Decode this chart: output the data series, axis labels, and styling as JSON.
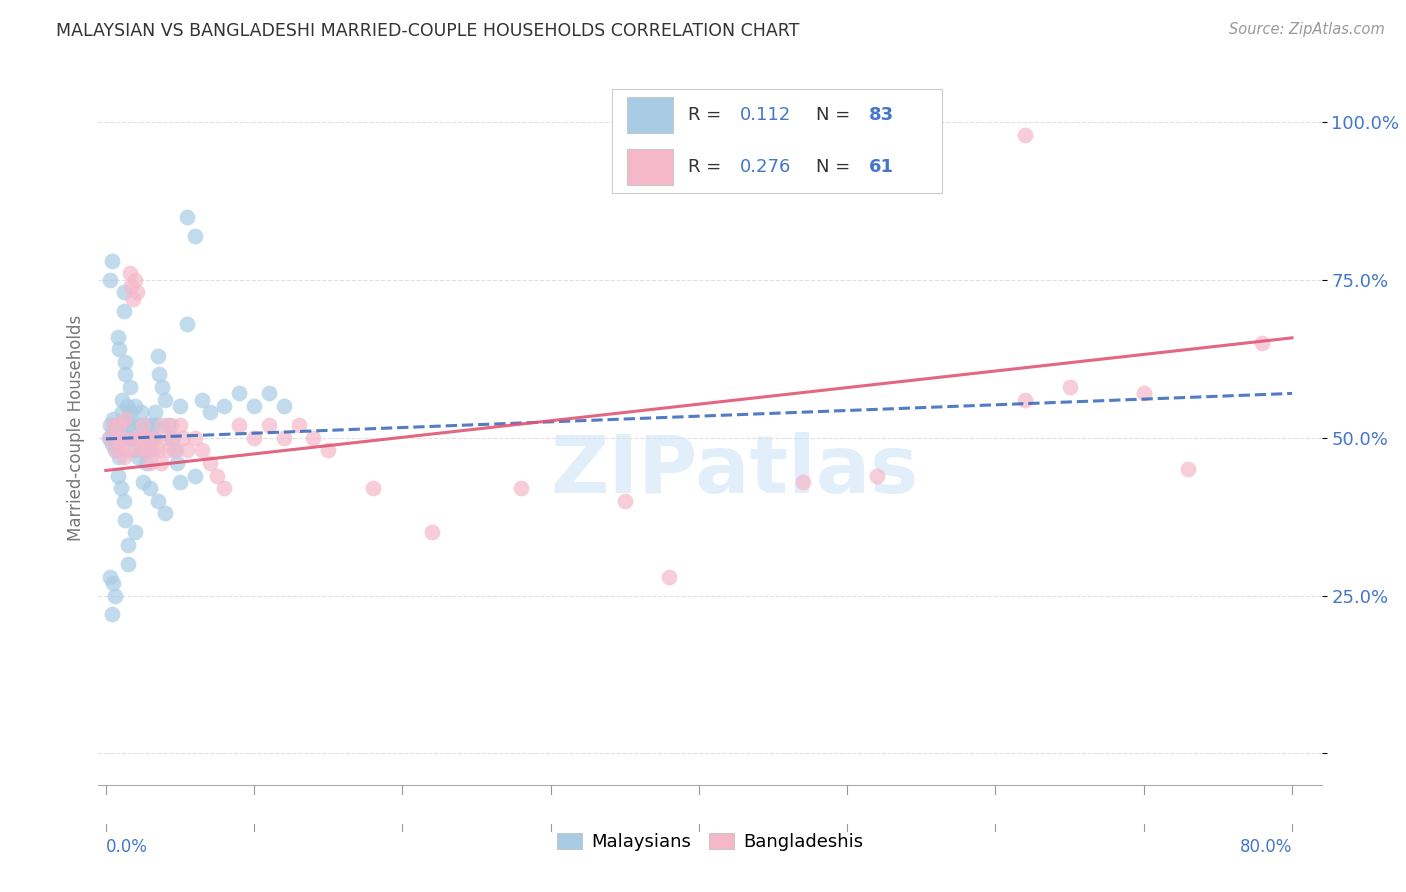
{
  "title": "MALAYSIAN VS BANGLADESHI MARRIED-COUPLE HOUSEHOLDS CORRELATION CHART",
  "source": "Source: ZipAtlas.com",
  "ylabel": "Married-couple Households",
  "y_ticks": [
    0.0,
    0.25,
    0.5,
    0.75,
    1.0
  ],
  "y_tick_labels": [
    "",
    "25.0%",
    "50.0%",
    "75.0%",
    "100.0%"
  ],
  "xlim": [
    -0.005,
    0.82
  ],
  "ylim": [
    -0.05,
    1.08
  ],
  "malaysian_color": "#a8cce4",
  "bangladeshi_color": "#f5b8cb",
  "trend_malaysian_color": "#3366bb",
  "trend_bangladeshi_color": "#e05575",
  "R_malaysian": 0.112,
  "N_malaysian": 83,
  "R_bangladeshi": 0.276,
  "N_bangladeshi": 61,
  "watermark": "ZIPatlas",
  "legend_malaysians": "Malaysians",
  "legend_bangladeshis": "Bangladeshis",
  "background_color": "#ffffff",
  "grid_color": "#dddddd",
  "malaysian_x": [
    0.002,
    0.003,
    0.004,
    0.005,
    0.005,
    0.006,
    0.006,
    0.007,
    0.007,
    0.008,
    0.008,
    0.009,
    0.009,
    0.01,
    0.01,
    0.011,
    0.011,
    0.012,
    0.012,
    0.013,
    0.013,
    0.014,
    0.014,
    0.015,
    0.015,
    0.016,
    0.016,
    0.017,
    0.018,
    0.019,
    0.02,
    0.021,
    0.022,
    0.023,
    0.024,
    0.025,
    0.026,
    0.027,
    0.028,
    0.029,
    0.03,
    0.031,
    0.032,
    0.033,
    0.034,
    0.035,
    0.036,
    0.038,
    0.04,
    0.042,
    0.044,
    0.046,
    0.048,
    0.05,
    0.055,
    0.06,
    0.065,
    0.07,
    0.08,
    0.09,
    0.1,
    0.11,
    0.12,
    0.05,
    0.06,
    0.025,
    0.03,
    0.035,
    0.04,
    0.02,
    0.015,
    0.015,
    0.013,
    0.012,
    0.01,
    0.008,
    0.006,
    0.005,
    0.004,
    0.003,
    0.003,
    0.004,
    0.055
  ],
  "malaysian_y": [
    0.5,
    0.52,
    0.49,
    0.51,
    0.53,
    0.48,
    0.52,
    0.5,
    0.49,
    0.51,
    0.66,
    0.47,
    0.64,
    0.52,
    0.5,
    0.54,
    0.56,
    0.7,
    0.73,
    0.6,
    0.62,
    0.55,
    0.53,
    0.5,
    0.52,
    0.54,
    0.58,
    0.5,
    0.52,
    0.48,
    0.55,
    0.5,
    0.47,
    0.52,
    0.54,
    0.5,
    0.48,
    0.46,
    0.52,
    0.5,
    0.48,
    0.52,
    0.5,
    0.54,
    0.52,
    0.63,
    0.6,
    0.58,
    0.56,
    0.52,
    0.5,
    0.48,
    0.46,
    0.55,
    0.85,
    0.82,
    0.56,
    0.54,
    0.55,
    0.57,
    0.55,
    0.57,
    0.55,
    0.43,
    0.44,
    0.43,
    0.42,
    0.4,
    0.38,
    0.35,
    0.3,
    0.33,
    0.37,
    0.4,
    0.42,
    0.44,
    0.25,
    0.27,
    0.22,
    0.28,
    0.75,
    0.78,
    0.68
  ],
  "bangladeshi_x": [
    0.003,
    0.005,
    0.007,
    0.008,
    0.009,
    0.01,
    0.011,
    0.012,
    0.013,
    0.015,
    0.016,
    0.017,
    0.018,
    0.019,
    0.02,
    0.021,
    0.022,
    0.023,
    0.025,
    0.026,
    0.027,
    0.028,
    0.03,
    0.032,
    0.033,
    0.035,
    0.037,
    0.038,
    0.04,
    0.042,
    0.044,
    0.045,
    0.047,
    0.05,
    0.052,
    0.055,
    0.06,
    0.065,
    0.07,
    0.075,
    0.08,
    0.09,
    0.1,
    0.11,
    0.12,
    0.13,
    0.14,
    0.15,
    0.18,
    0.22,
    0.28,
    0.35,
    0.38,
    0.47,
    0.52,
    0.62,
    0.65,
    0.7,
    0.73,
    0.78,
    0.62
  ],
  "bangladeshi_y": [
    0.5,
    0.52,
    0.48,
    0.5,
    0.52,
    0.48,
    0.5,
    0.47,
    0.53,
    0.48,
    0.76,
    0.74,
    0.72,
    0.5,
    0.75,
    0.73,
    0.5,
    0.48,
    0.52,
    0.5,
    0.48,
    0.5,
    0.46,
    0.48,
    0.5,
    0.48,
    0.46,
    0.52,
    0.5,
    0.48,
    0.52,
    0.5,
    0.48,
    0.52,
    0.5,
    0.48,
    0.5,
    0.48,
    0.46,
    0.44,
    0.42,
    0.52,
    0.5,
    0.52,
    0.5,
    0.52,
    0.5,
    0.48,
    0.42,
    0.35,
    0.42,
    0.4,
    0.28,
    0.43,
    0.44,
    0.56,
    0.58,
    0.57,
    0.45,
    0.65,
    0.98
  ],
  "trend_m_x0": 0.0,
  "trend_m_y0": 0.498,
  "trend_m_x1": 0.8,
  "trend_m_y1": 0.57,
  "trend_b_x0": 0.0,
  "trend_b_y0": 0.448,
  "trend_b_x1": 0.8,
  "trend_b_y1": 0.658
}
